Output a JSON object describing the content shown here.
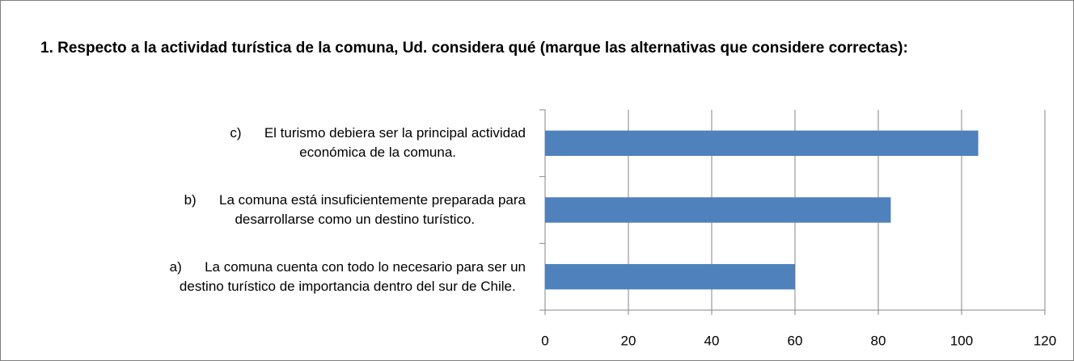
{
  "chart_data": {
    "type": "barh",
    "title": "1. Respecto a la actividad turística de la comuna, Ud. considera qué (marque las alternativas que considere correctas):",
    "categories": [
      "a)      La comuna cuenta con todo lo necesario para ser un\ndestino turístico de importancia dentro del sur de Chile.",
      "b)      La comuna está insuficientemente preparada para\ndesarrollarse como un destino turístico.",
      "c)      El turismo debiera ser la principal actividad\neconómica de la comuna."
    ],
    "values": [
      60,
      83,
      104
    ],
    "color": "#4f81bd",
    "xlim": [
      0,
      120
    ],
    "xticks": [
      0,
      20,
      40,
      60,
      80,
      100,
      120
    ],
    "grid": true
  }
}
